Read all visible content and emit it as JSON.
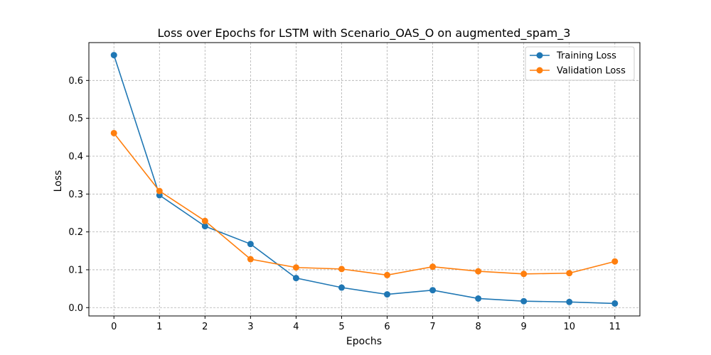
{
  "chart_data": {
    "type": "line",
    "title": "Loss over Epochs for LSTM with Scenario_OAS_O on augmented_spam_3",
    "xlabel": "Epochs",
    "ylabel": "Loss",
    "x": [
      0,
      1,
      2,
      3,
      4,
      5,
      6,
      7,
      8,
      9,
      10,
      11
    ],
    "xlim": [
      -0.55,
      11.55
    ],
    "ylim": [
      -0.022,
      0.7
    ],
    "yticks": [
      0.0,
      0.1,
      0.2,
      0.3,
      0.4,
      0.5,
      0.6
    ],
    "ytick_labels": [
      "0.0",
      "0.1",
      "0.2",
      "0.3",
      "0.4",
      "0.5",
      "0.6"
    ],
    "xtick_labels": [
      "0",
      "1",
      "2",
      "3",
      "4",
      "5",
      "6",
      "7",
      "8",
      "9",
      "10",
      "11"
    ],
    "grid": true,
    "legend_position": "top-right",
    "series": [
      {
        "name": "Training Loss",
        "color": "#1f77b4",
        "values": [
          0.667,
          0.297,
          0.215,
          0.168,
          0.078,
          0.053,
          0.035,
          0.046,
          0.024,
          0.017,
          0.015,
          0.011
        ]
      },
      {
        "name": "Validation Loss",
        "color": "#ff7f0e",
        "values": [
          0.461,
          0.308,
          0.229,
          0.128,
          0.106,
          0.102,
          0.086,
          0.108,
          0.096,
          0.089,
          0.091,
          0.122
        ]
      }
    ]
  }
}
